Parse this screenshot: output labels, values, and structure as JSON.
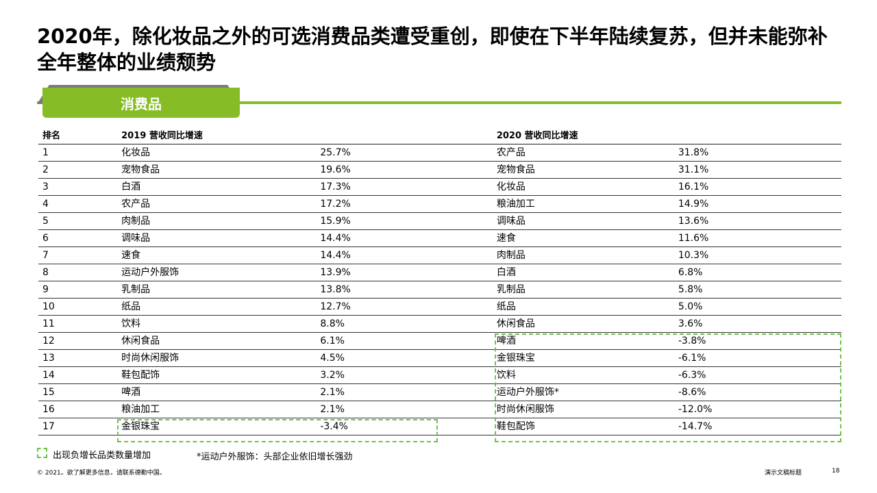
{
  "title": "2020年，除化妆品之外的可选消费品类遭受重创，即使在下半年陆续复苏，但并未能弥补全年整体的业绩颓势",
  "section_tab": "消费品",
  "colors": {
    "accent": "#86bc25",
    "highlight_dash": "#6cc04a"
  },
  "table": {
    "headers": {
      "rank": "排名",
      "y2019": "2019 营收同比增速",
      "y2020": "2020 营收同比增速"
    },
    "rows": [
      {
        "rank": "1",
        "cat2019": "化妆品",
        "val2019": "25.7%",
        "cat2020": "农产品",
        "val2020": "31.8%"
      },
      {
        "rank": "2",
        "cat2019": "宠物食品",
        "val2019": "19.6%",
        "cat2020": "宠物食品",
        "val2020": "31.1%"
      },
      {
        "rank": "3",
        "cat2019": "白酒",
        "val2019": "17.3%",
        "cat2020": "化妆品",
        "val2020": "16.1%"
      },
      {
        "rank": "4",
        "cat2019": "农产品",
        "val2019": "17.2%",
        "cat2020": "粮油加工",
        "val2020": "14.9%"
      },
      {
        "rank": "5",
        "cat2019": "肉制品",
        "val2019": "15.9%",
        "cat2020": "调味品",
        "val2020": "13.6%"
      },
      {
        "rank": "6",
        "cat2019": "调味品",
        "val2019": "14.4%",
        "cat2020": "速食",
        "val2020": "11.6%"
      },
      {
        "rank": "7",
        "cat2019": "速食",
        "val2019": "14.4%",
        "cat2020": "肉制品",
        "val2020": "10.3%"
      },
      {
        "rank": "8",
        "cat2019": "运动户外服饰",
        "val2019": "13.9%",
        "cat2020": "白酒",
        "val2020": "6.8%"
      },
      {
        "rank": "9",
        "cat2019": "乳制品",
        "val2019": "13.8%",
        "cat2020": "乳制品",
        "val2020": "5.8%"
      },
      {
        "rank": "10",
        "cat2019": "纸品",
        "val2019": "12.7%",
        "cat2020": "纸品",
        "val2020": "5.0%"
      },
      {
        "rank": "11",
        "cat2019": "饮料",
        "val2019": "8.8%",
        "cat2020": "休闲食品",
        "val2020": "3.6%"
      },
      {
        "rank": "12",
        "cat2019": "休闲食品",
        "val2019": "6.1%",
        "cat2020": "啤酒",
        "val2020": "-3.8%"
      },
      {
        "rank": "13",
        "cat2019": "时尚休闲服饰",
        "val2019": "4.5%",
        "cat2020": "金银珠宝",
        "val2020": "-6.1%"
      },
      {
        "rank": "14",
        "cat2019": "鞋包配饰",
        "val2019": "3.2%",
        "cat2020": "饮料",
        "val2020": "-6.3%"
      },
      {
        "rank": "15",
        "cat2019": "啤酒",
        "val2019": "2.1%",
        "cat2020": "运动户外服饰*",
        "val2020": "-8.6%"
      },
      {
        "rank": "16",
        "cat2019": "粮油加工",
        "val2019": "2.1%",
        "cat2020": "时尚休闲服饰",
        "val2020": "-12.0%"
      },
      {
        "rank": "17",
        "cat2019": "金银珠宝",
        "val2019": "-3.4%",
        "cat2020": "鞋包配饰",
        "val2020": "-14.7%"
      }
    ]
  },
  "legend": "出现负增长品类数量增加",
  "note": "*运动户外服饰：头部企业依旧增长强劲",
  "footer": {
    "copyright": "© 2021。欲了解更多信息，请联系德勤中国。",
    "deck_title": "演示文稿标题",
    "page": "18"
  }
}
